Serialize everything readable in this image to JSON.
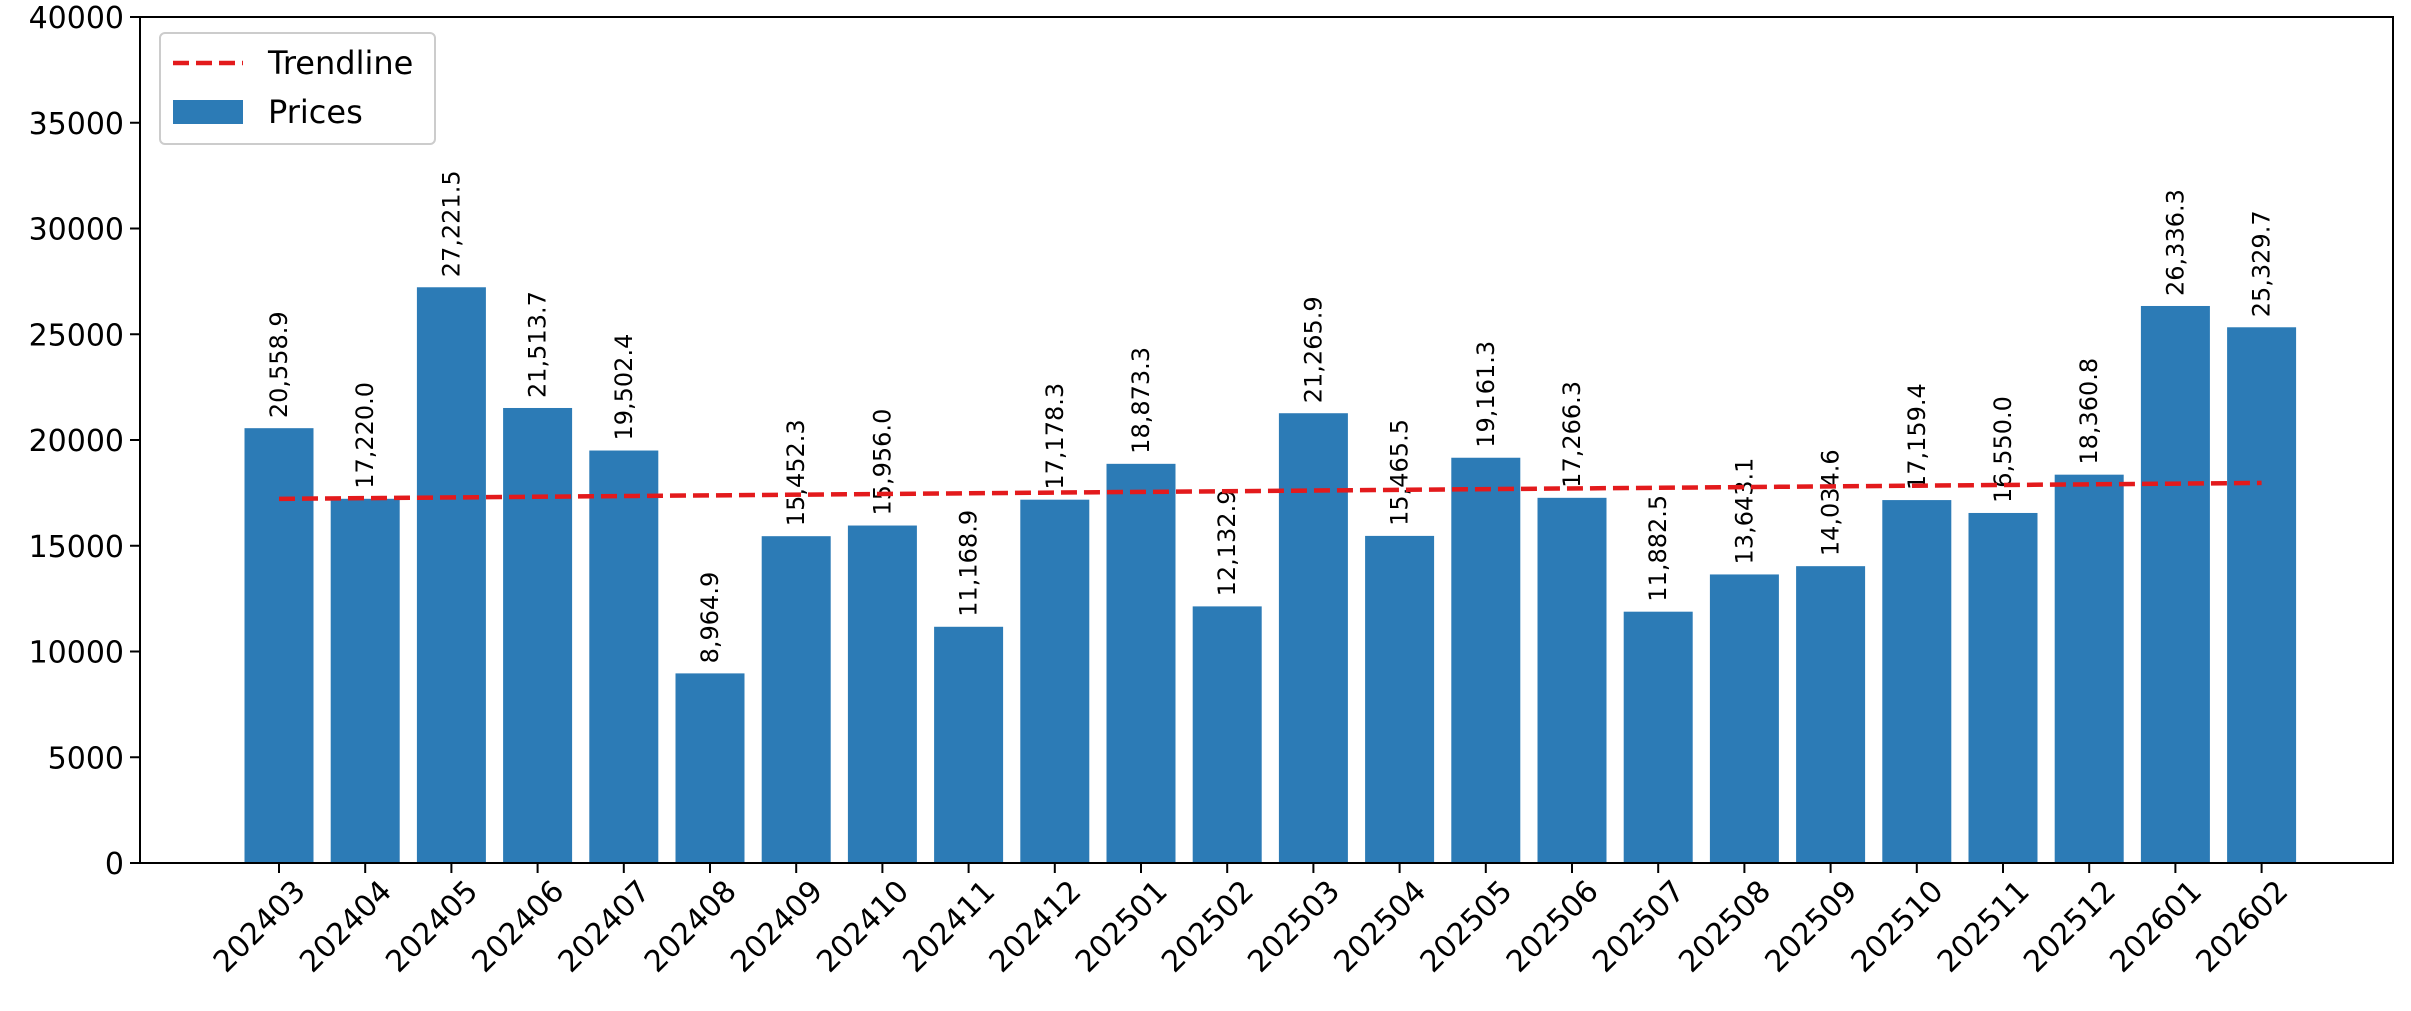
{
  "chart_data": {
    "type": "bar",
    "title": "",
    "xlabel": "",
    "ylabel": "",
    "categories": [
      "202403",
      "202404",
      "202405",
      "202406",
      "202407",
      "202408",
      "202409",
      "202410",
      "202411",
      "202412",
      "202501",
      "202502",
      "202503",
      "202504",
      "202505",
      "202506",
      "202507",
      "202508",
      "202509",
      "202510",
      "202511",
      "202512",
      "202601",
      "202602"
    ],
    "series": [
      {
        "name": "Prices",
        "color": "#2c7bb6",
        "values": [
          20558.9,
          17220.0,
          27221.5,
          21513.7,
          19502.4,
          8964.9,
          15452.3,
          15956.0,
          11168.9,
          17178.3,
          18873.3,
          12132.9,
          21265.9,
          15465.5,
          19161.3,
          17266.3,
          11882.5,
          13643.1,
          14034.6,
          17159.4,
          16550.0,
          18360.8,
          26336.3,
          25329.7
        ],
        "value_labels": [
          "20,558.9",
          "17,220.0",
          "27,221.5",
          "21,513.7",
          "19,502.4",
          "8,964.9",
          "15,452.3",
          "15,956.0",
          "11,168.9",
          "17,178.3",
          "18,873.3",
          "12,132.9",
          "21,265.9",
          "15,465.5",
          "19,161.3",
          "17,266.3",
          "11,882.5",
          "13,643.1",
          "14,034.6",
          "17,159.4",
          "16,550.0",
          "18,360.8",
          "26,336.3",
          "25,329.7"
        ]
      }
    ],
    "trendline": {
      "name": "Trendline",
      "color": "#e31a1c",
      "style": "dashed",
      "start": 17219,
      "end": 17970
    },
    "ylim": [
      0,
      40000
    ],
    "yticks": [
      0,
      5000,
      10000,
      15000,
      20000,
      25000,
      30000,
      35000,
      40000
    ],
    "ytick_labels": [
      "0",
      "5000",
      "10000",
      "15000",
      "20000",
      "25000",
      "30000",
      "35000",
      "40000"
    ],
    "grid": false,
    "legend_position": "top-left",
    "legend": [
      {
        "label": "Trendline",
        "kind": "dashed-line",
        "color": "#e31a1c"
      },
      {
        "label": "Prices",
        "kind": "patch",
        "color": "#2c7bb6"
      }
    ]
  }
}
